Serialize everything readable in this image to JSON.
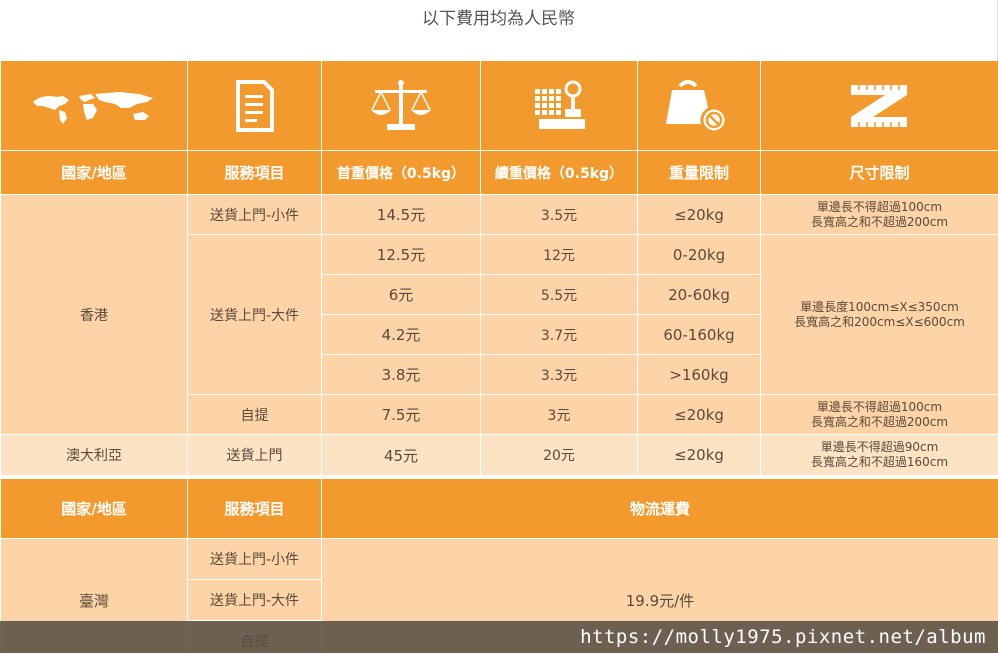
{
  "caption": "以下費用均為人民幣",
  "header": {
    "icons": [
      "world-map-icon",
      "document-icon",
      "balance-scale-icon",
      "weighing-scale-icon",
      "weight-limit-icon",
      "ruler-icon"
    ],
    "labels": [
      "國家/地區",
      "服務項目",
      "首重價格（0.5kg）",
      "續重價格（0.5kg）",
      "重量限制",
      "尺寸限制"
    ]
  },
  "hongkong": {
    "region": "香港",
    "small_service": "送貨上門-小件",
    "small": {
      "first": "14.5元",
      "extra": "3.5元",
      "weight": "≤20kg",
      "size_1": "單邊長不得超過100cm",
      "size_2": "長寬高之和不超過200cm"
    },
    "large_service": "送貨上門-大件",
    "large_rows": [
      {
        "first": "12.5元",
        "extra": "12元",
        "weight": "0-20kg"
      },
      {
        "first": "6元",
        "extra": "5.5元",
        "weight": "20-60kg"
      },
      {
        "first": "4.2元",
        "extra": "3.7元",
        "weight": "60-160kg"
      },
      {
        "first": "3.8元",
        "extra": "3.3元",
        "weight": ">160kg"
      }
    ],
    "large_size_1": "單邊長度100cm≤X≤350cm",
    "large_size_2": "長寬高之和200cm≤X≤600cm",
    "pickup_service": "自提",
    "pickup": {
      "first": "7.5元",
      "extra": "3元",
      "weight": "≤20kg",
      "size_1": "單邊長不得超過100cm",
      "size_2": "長寬高之和不超過200cm"
    }
  },
  "australia": {
    "region": "澳大利亞",
    "service": "送貨上門",
    "first": "45元",
    "extra": "20元",
    "weight": "≤20kg",
    "size_1": "單邊長不得超過90cm",
    "size_2": "長寬高之和不超過160cm"
  },
  "header2": {
    "region": "國家/地區",
    "service": "服務項目",
    "fee": "物流運費"
  },
  "taiwan": {
    "region": "臺灣",
    "services": [
      "送貨上門-小件",
      "送貨上門-大件",
      "自提"
    ],
    "fee": "19.9元/件"
  },
  "watermark": "https://molly1975.pixnet.net/album",
  "colors": {
    "header": "#f39a2e",
    "row": "#fdd4a7",
    "row_alt": "#fce3c4"
  }
}
